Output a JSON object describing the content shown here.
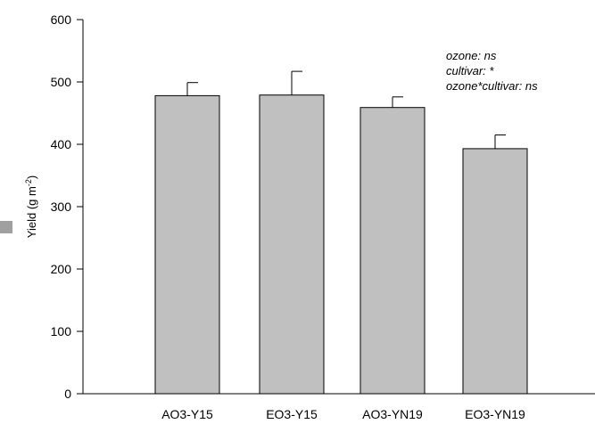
{
  "chart_data": {
    "type": "bar",
    "categories": [
      "AO3-Y15",
      "EO3-Y15",
      "AO3-YN19",
      "EO3-YN19"
    ],
    "values": [
      478,
      479,
      459,
      393
    ],
    "errors": [
      21,
      38,
      17,
      22
    ],
    "ylim": [
      0,
      600
    ],
    "yticks": [
      "0",
      "100",
      "200",
      "300",
      "400",
      "500",
      "600"
    ],
    "ylabel_text": "Yield (g m",
    "ylabel_sup": "-2",
    "ylabel_close": ")",
    "annotations": [
      "ozone: ns",
      "cultivar: *",
      "ozone*cultivar: ns"
    ],
    "bar_color": "#c0c0c0",
    "grid": false
  }
}
